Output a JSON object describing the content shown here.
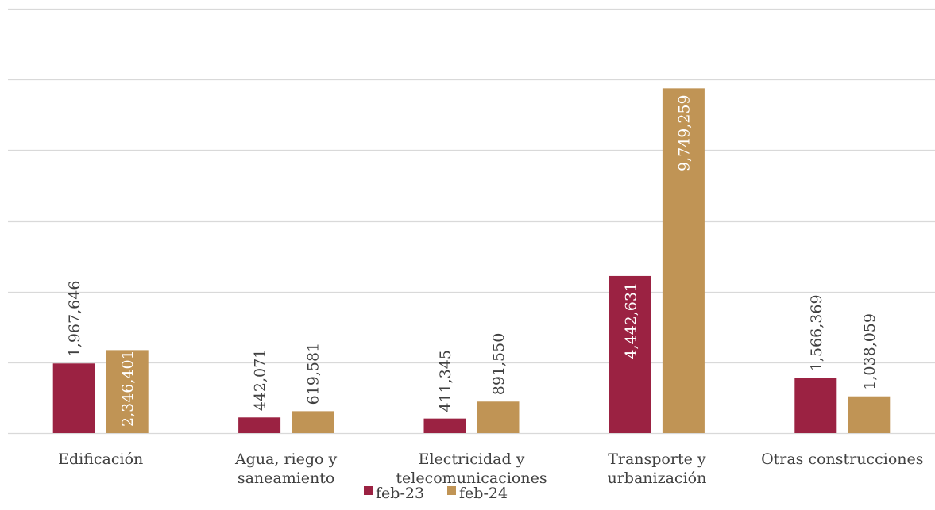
{
  "chart_data": {
    "type": "bar",
    "categories": [
      [
        "Edificación"
      ],
      [
        "Agua, riego y",
        "saneamiento"
      ],
      [
        "Electricidad y",
        "telecomunicaciones"
      ],
      [
        "Transporte y",
        "urbanización"
      ],
      [
        "Otras construcciones"
      ]
    ],
    "series": [
      {
        "name": "feb-23",
        "color": "#9B2242",
        "values": [
          1967646,
          442071,
          411345,
          4442631,
          1566369
        ],
        "labels": [
          "1,967,646",
          "442,071",
          "411,345",
          "4,442,631",
          "1,566,369"
        ]
      },
      {
        "name": "feb-24",
        "color": "#C09455",
        "values": [
          2346401,
          619581,
          891550,
          9749259,
          1038059
        ],
        "labels": [
          "2,346,401",
          "619,581",
          "891,550",
          "9,749,259",
          "1,038,059"
        ]
      }
    ],
    "ylim": [
      0,
      12000000
    ],
    "grid": true,
    "legend": "bottom",
    "gridline_color": "#D9D9D9",
    "label_color": "#404040"
  }
}
